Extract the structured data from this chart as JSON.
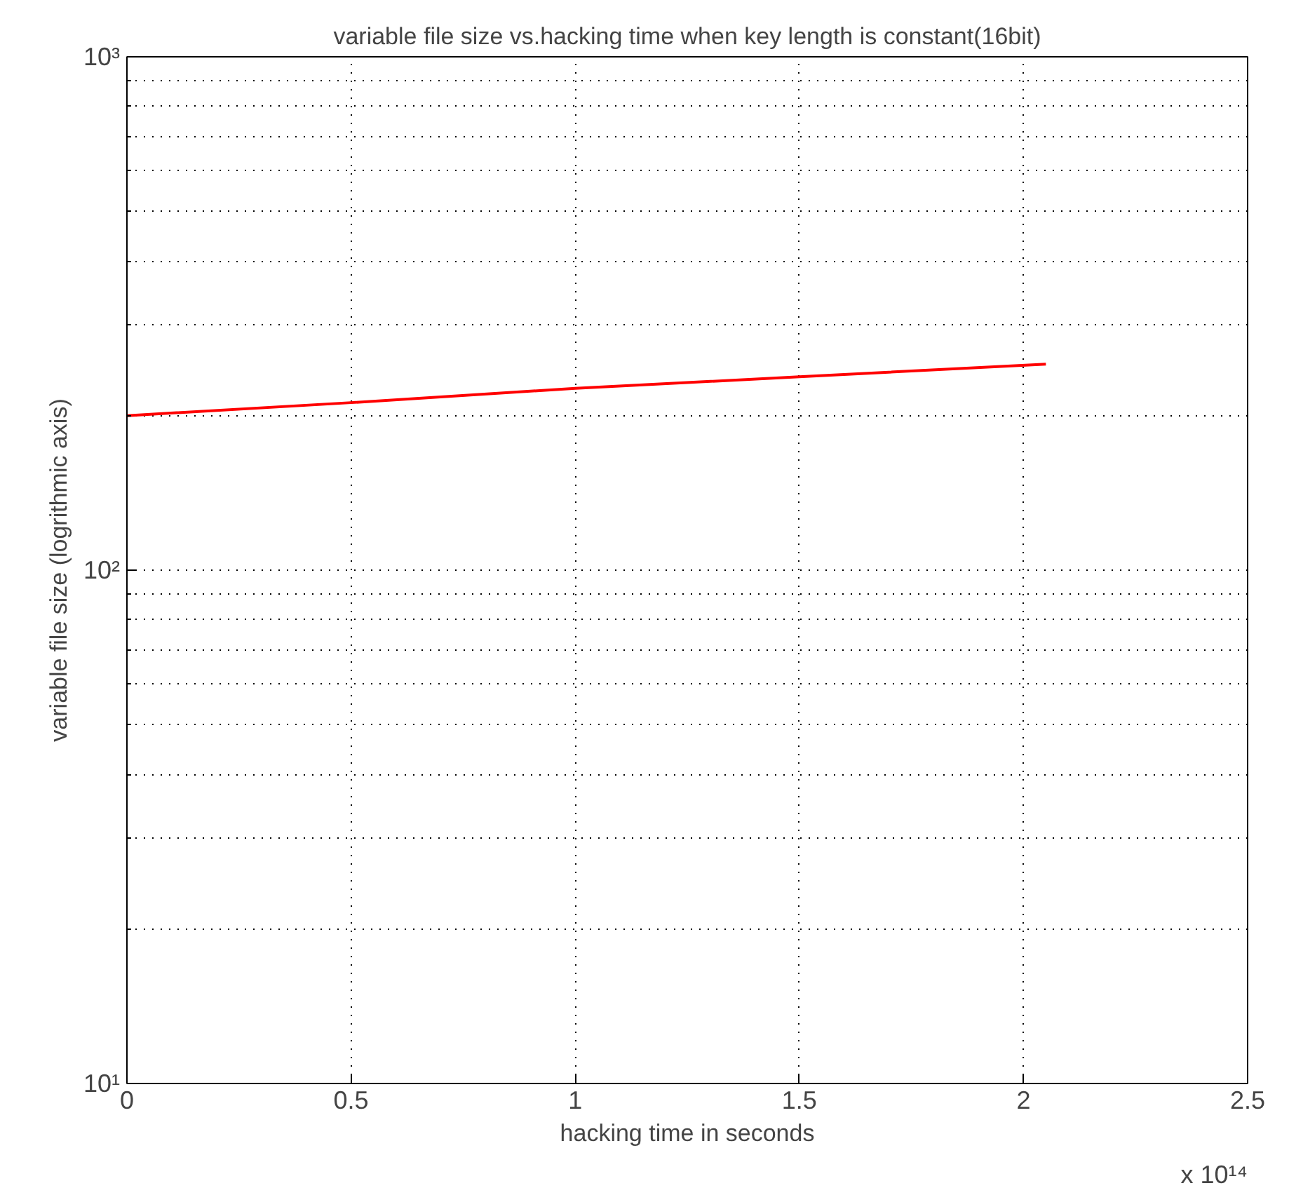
{
  "chart_data": {
    "type": "line",
    "title": "variable file size vs.hacking time when key length is constant(16bit)",
    "xlabel": "hacking time in seconds",
    "ylabel": "variable file size (logrithmic axis)",
    "annotations": [
      "x 10¹⁴"
    ],
    "x": [
      0,
      0.5,
      1,
      1.5,
      2.05
    ],
    "series": [
      {
        "color": "#ff0000",
        "values": [
          200,
          212,
          226,
          238,
          252
        ]
      }
    ],
    "log": "y",
    "grid": true,
    "line_style": "solid",
    "marker": "none",
    "xlim": [
      0,
      2.5
    ],
    "xticks": [
      0,
      0.5,
      1,
      1.5,
      2,
      2.5
    ],
    "ylim": [
      10,
      1000
    ],
    "yticks": [
      {
        "value": 10,
        "label": "10¹"
      },
      {
        "value": 100,
        "label": "10²"
      },
      {
        "value": 1000,
        "label": "10³"
      }
    ]
  }
}
